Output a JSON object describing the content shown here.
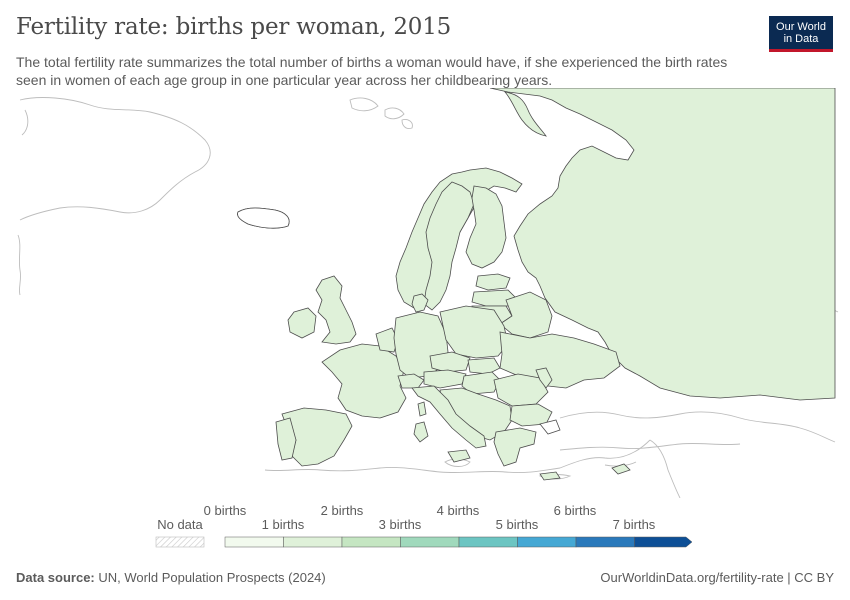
{
  "header": {
    "title": "Fertility rate: births per woman, 2015",
    "subtitle": "The total fertility rate summarizes the total number of births a woman would have, if she experienced the birth rates seen in women of each age group in one particular year across her childbearing years.",
    "logo_line1": "Our World",
    "logo_line2": "in Data"
  },
  "colors": {
    "land_no_data": "#ffffff",
    "land_1_2": "#dff1d9",
    "border": "#4d4d4d",
    "coast_other": "#b8b8b8",
    "bins": [
      "#f2faee",
      "#dff1d9",
      "#c5e6c2",
      "#a0d9bc",
      "#6cc5c2",
      "#45a8d4",
      "#2a79bb",
      "#0d4f96"
    ]
  },
  "legend": {
    "no_data_label": "No data",
    "tick_labels": [
      "0 births",
      "1 births",
      "2 births",
      "3 births",
      "4 births",
      "5 births",
      "6 births",
      "7 births"
    ]
  },
  "footer": {
    "source_label": "Data source:",
    "source_text": "UN, World Population Prospects (2024)",
    "credit": "OurWorldinData.org/fertility-rate | CC BY"
  }
}
